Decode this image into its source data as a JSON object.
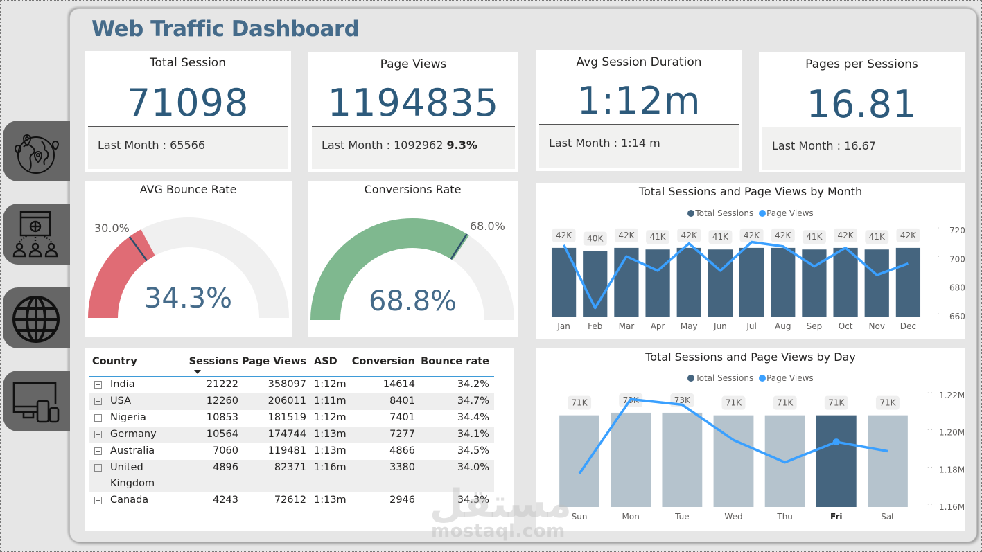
{
  "title": "Web Traffic Dashboard",
  "nav": [
    {
      "name": "geo-map-icon"
    },
    {
      "name": "web-audience-icon"
    },
    {
      "name": "globe-icon"
    },
    {
      "name": "devices-icon"
    }
  ],
  "kpis": {
    "total_session": {
      "label": "Total Session",
      "value": "71098",
      "foot": "Last Month : 65566"
    },
    "page_views": {
      "label": "Page Views",
      "value": "1194835",
      "foot": "Last Month : 1092962",
      "change": "9.3%"
    },
    "avg_session_duration": {
      "label": "Avg Session Duration",
      "value": "1:12m",
      "foot": "Last Month : 1:14 m"
    },
    "pages_per_session": {
      "label": "Pages per Sessions",
      "value": "16.81",
      "foot": "Last Month : 16.67"
    }
  },
  "gauges": {
    "bounce": {
      "title": "AVG Bounce Rate",
      "value_label": "34.3%",
      "target_label": "30.0%",
      "value": 34.3,
      "target": 30.0,
      "min": 0,
      "max": 100,
      "color": "#e06c75"
    },
    "conversion": {
      "title": "Conversions Rate",
      "value_label": "68.8%",
      "target_label": "68.0%",
      "value": 68.8,
      "target": 68.0,
      "min": 0,
      "max": 100,
      "color": "#7fb88f"
    }
  },
  "table": {
    "columns": [
      "Country",
      "Sessions",
      "Page Views",
      "ASD",
      "Conversion",
      "Bounce rate"
    ],
    "sort_column": "Sessions",
    "rows": [
      [
        "India",
        "21222",
        "358097",
        "1:12m",
        "14614",
        "34.2%"
      ],
      [
        "USA",
        "12260",
        "206011",
        "1:11m",
        "8401",
        "34.7%"
      ],
      [
        "Nigeria",
        "10853",
        "181519",
        "1:12m",
        "7401",
        "34.4%"
      ],
      [
        "Germany",
        "10564",
        "174744",
        "1:13m",
        "7277",
        "34.1%"
      ],
      [
        "Australia",
        "7060",
        "119481",
        "1:13m",
        "4866",
        "34.5%"
      ],
      [
        "United Kingdom",
        "4896",
        "82371",
        "1:16m",
        "3380",
        "34.0%"
      ],
      [
        "Canada",
        "4243",
        "72612",
        "1:13m",
        "2946",
        "34.3%"
      ]
    ]
  },
  "chart_data": [
    {
      "type": "bar",
      "title": "Total Sessions and Page Views by Month",
      "legend": [
        "Total Sessions",
        "Page Views"
      ],
      "legend_position": "top-center",
      "colors": {
        "bars": "#45657f",
        "line": "#3aa0ff"
      },
      "categories": [
        "Jan",
        "Feb",
        "Mar",
        "Apr",
        "May",
        "Jun",
        "Jul",
        "Aug",
        "Sep",
        "Oct",
        "Nov",
        "Dec"
      ],
      "series": [
        {
          "name": "Total Sessions",
          "kind": "bar",
          "values": [
            42,
            40,
            42,
            41,
            42,
            41,
            42,
            42,
            41,
            42,
            41,
            42
          ],
          "labels": [
            "42K",
            "40K",
            "42K",
            "41K",
            "42K",
            "41K",
            "42K",
            "42K",
            "41K",
            "42K",
            "41K",
            "42K"
          ],
          "unit": "K"
        },
        {
          "name": "Page Views",
          "kind": "line",
          "axis": "right",
          "values": [
            710,
            666,
            702,
            692,
            711,
            692,
            712,
            709,
            695,
            708,
            689,
            697
          ],
          "unit": "K"
        }
      ],
      "y2_ticks": [
        "720K",
        "700K",
        "680K",
        "660K"
      ],
      "y2lim": [
        660,
        720
      ]
    },
    {
      "type": "bar",
      "title": "Total Sessions and Page Views by Day",
      "legend": [
        "Total Sessions",
        "Page Views"
      ],
      "legend_position": "top-center",
      "colors": {
        "bars": "#b5c3cd",
        "highlight": "#45657f",
        "line": "#3aa0ff"
      },
      "highlighted": "Fri",
      "categories": [
        "Sun",
        "Mon",
        "Tue",
        "Wed",
        "Thu",
        "Fri",
        "Sat"
      ],
      "series": [
        {
          "name": "Total Sessions",
          "kind": "bar",
          "values": [
            71,
            73,
            73,
            71,
            71,
            71,
            71
          ],
          "labels": [
            "71K",
            "73K",
            "73K",
            "71K",
            "71K",
            "71K",
            "71K"
          ],
          "unit": "K"
        },
        {
          "name": "Page Views",
          "kind": "line",
          "axis": "right",
          "values": [
            1.178,
            1.218,
            1.215,
            1.196,
            1.184,
            1.195,
            1.19
          ],
          "unit": "M"
        }
      ],
      "y2_ticks": [
        "1.22M",
        "1.20M",
        "1.18M",
        "1.16M"
      ],
      "y2lim": [
        1.16,
        1.22
      ]
    }
  ],
  "watermark": {
    "arabic": "مستقل",
    "latin": "mostaql.com"
  }
}
